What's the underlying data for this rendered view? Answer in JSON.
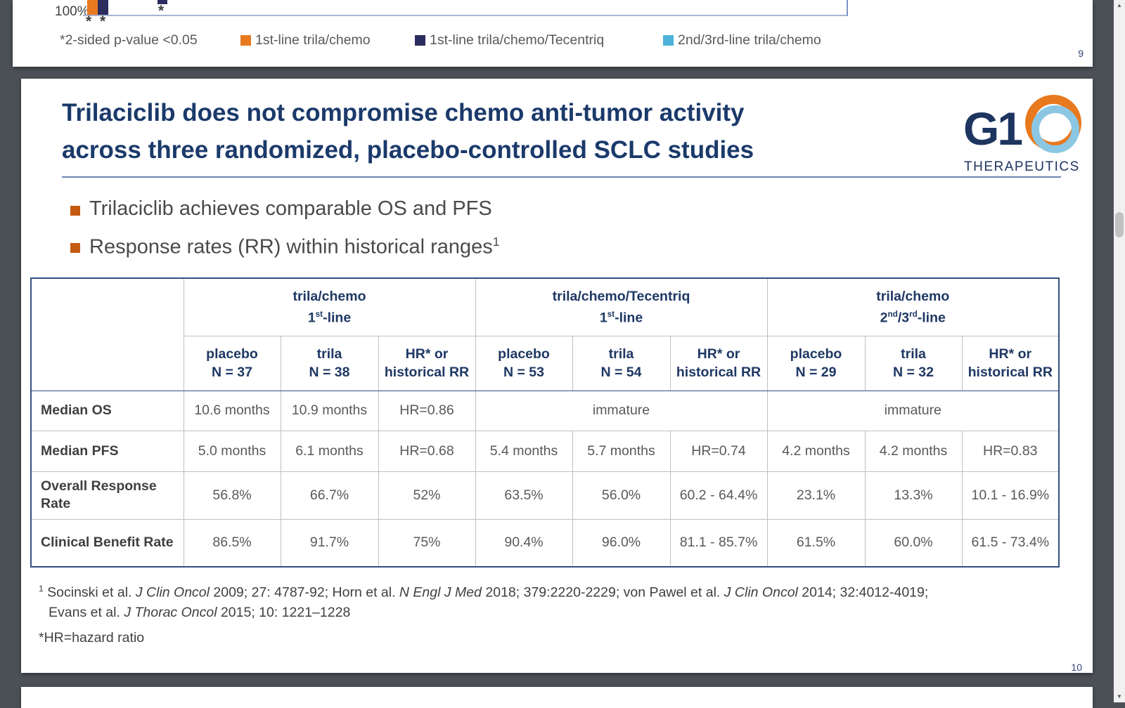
{
  "viewer": {
    "background_color": "#4C5157",
    "scrollbar": {
      "up_arrow": "▲",
      "down_arrow": "▼"
    }
  },
  "top_slide": {
    "page_number": "9",
    "chart_fragment": {
      "y_axis_tick_label": "100%",
      "significance_marks": {
        "pair": "* *",
        "single": "*"
      },
      "axis_color": "#A7B5D3"
    },
    "legend_note": "*2-sided p-value <0.05",
    "legend": [
      {
        "label": "1st-line trila/chemo",
        "color": "#E8791F"
      },
      {
        "label": "1st-line trila/chemo/Tecentriq",
        "color": "#2B2D5E"
      },
      {
        "label": "2nd/3rd-line trila/chemo",
        "color": "#4CB4D8"
      }
    ]
  },
  "main_slide": {
    "page_number": "10",
    "title": {
      "line1": "Trilaciclib does not compromise chemo anti-tumor activity",
      "line2": "across three randomized, placebo-controlled SCLC studies",
      "color": "#1B3A6B"
    },
    "logo": {
      "name": "G1",
      "wordmark": "THERAPEUTICS",
      "navy": "#1E3560",
      "orange": "#E8791F",
      "light_blue": "#8BC7E3"
    },
    "bullets": {
      "marker_color": "#C55A11",
      "first": "Trilaciclib achieves comparable OS and PFS",
      "second_rich": [
        {
          "t": "Response rates (RR) within historical ranges"
        },
        {
          "t": "1",
          "sup": true
        }
      ]
    },
    "table": {
      "groups": [
        {
          "line1": "trila/chemo",
          "line2_rich": [
            {
              "t": "1"
            },
            {
              "t": "st",
              "sup": true
            },
            {
              "t": "-line"
            }
          ]
        },
        {
          "line1": "trila/chemo/Tecentriq",
          "line2_rich": [
            {
              "t": "1"
            },
            {
              "t": "st",
              "sup": true
            },
            {
              "t": "-line"
            }
          ]
        },
        {
          "line1": "trila/chemo",
          "line2_rich": [
            {
              "t": "2"
            },
            {
              "t": "nd",
              "sup": true
            },
            {
              "t": "/3"
            },
            {
              "t": "rd",
              "sup": true
            },
            {
              "t": "-line"
            }
          ]
        }
      ],
      "sub_headers": [
        {
          "l1": "placebo",
          "l2": "N = 37"
        },
        {
          "l1": "trila",
          "l2": "N = 38"
        },
        {
          "l1": "HR* or",
          "l2": "historical RR"
        },
        {
          "l1": "placebo",
          "l2": "N = 53"
        },
        {
          "l1": "trila",
          "l2": "N = 54"
        },
        {
          "l1": "HR* or",
          "l2": "historical RR"
        },
        {
          "l1": "placebo",
          "l2": "N = 29"
        },
        {
          "l1": "trila",
          "l2": "N = 32"
        },
        {
          "l1": "HR* or",
          "l2": "historical RR"
        }
      ],
      "rows": [
        {
          "label": "Median OS",
          "cells": [
            "10.6 months",
            "10.9 months",
            "HR=0.86"
          ],
          "merged": [
            "immature",
            "immature"
          ]
        },
        {
          "label": "Median PFS",
          "cells": [
            "5.0 months",
            "6.1 months",
            "HR=0.68",
            "5.4 months",
            "5.7 months",
            "HR=0.74",
            "4.2 months",
            "4.2 months",
            "HR=0.83"
          ]
        },
        {
          "label": "Overall Response Rate",
          "cells": [
            "56.8%",
            "66.7%",
            "52%",
            "63.5%",
            "56.0%",
            "60.2 - 64.4%",
            "23.1%",
            "13.3%",
            "10.1 - 16.9%"
          ]
        },
        {
          "label": "Clinical Benefit Rate",
          "cells": [
            "86.5%",
            "91.7%",
            "75%",
            "90.4%",
            "96.0%",
            "81.1 - 85.7%",
            "61.5%",
            "60.0%",
            "61.5 - 73.4%"
          ]
        }
      ]
    },
    "footnotes": {
      "ref1_rich": [
        {
          "t": "1",
          "sup": true
        },
        {
          "t": " Socinski et al. "
        },
        {
          "t": "J Clin Oncol",
          "i": true
        },
        {
          "t": " 2009; 27: 4787-92; Horn et al. "
        },
        {
          "t": "N Engl J Med",
          "i": true
        },
        {
          "t": " 2018; 379:2220-2229; von Pawel et al. "
        },
        {
          "t": "J Clin Oncol",
          "i": true
        },
        {
          "t": " 2014; 32:4012-4019;"
        }
      ],
      "ref1_cont_rich": [
        {
          "t": "Evans et al. "
        },
        {
          "t": "J Thorac Oncol",
          "i": true
        },
        {
          "t": " 2015; 10: 1221–1228"
        }
      ],
      "hr_note": "*HR=hazard ratio"
    }
  }
}
